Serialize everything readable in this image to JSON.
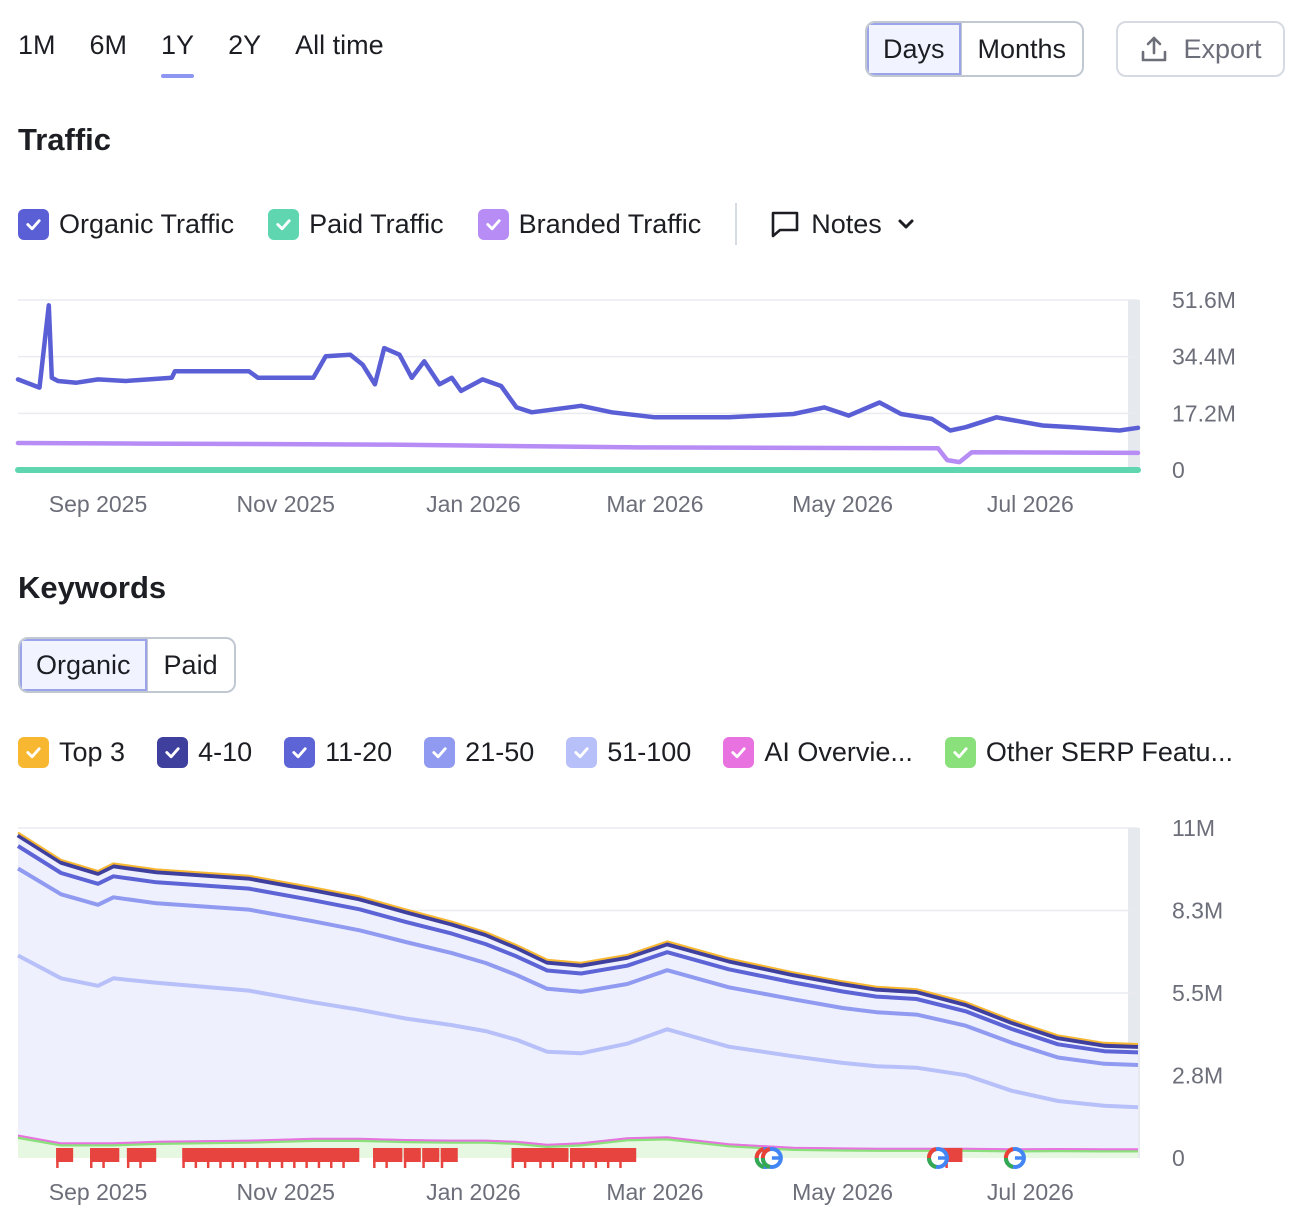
{
  "period_tabs": [
    {
      "label": "1M",
      "active": false
    },
    {
      "label": "6M",
      "active": false
    },
    {
      "label": "1Y",
      "active": true
    },
    {
      "label": "2Y",
      "active": false
    },
    {
      "label": "All time",
      "active": false
    }
  ],
  "granularity": {
    "days_label": "Days",
    "months_label": "Months",
    "selected": "Days"
  },
  "export": {
    "label": "Export",
    "icon": "upload-icon"
  },
  "traffic": {
    "title": "Traffic",
    "legend": [
      {
        "label": "Organic Traffic",
        "color": "#5b5fd6",
        "checked": true
      },
      {
        "label": "Paid Traffic",
        "color": "#5fd6b0",
        "checked": true
      },
      {
        "label": "Branded Traffic",
        "color": "#b78cf5",
        "checked": true
      }
    ],
    "notes_label": "Notes",
    "y_ticks": [
      "51.6M",
      "34.4M",
      "17.2M",
      "0"
    ],
    "x_ticks": [
      "Sep 2025",
      "Nov 2025",
      "Jan 2026",
      "Mar 2026",
      "May 2026",
      "Jul 2026"
    ]
  },
  "keywords": {
    "title": "Keywords",
    "tabs": {
      "organic_label": "Organic",
      "paid_label": "Paid",
      "selected": "Organic"
    },
    "legend": [
      {
        "label": "Top 3",
        "color": "#f7b731",
        "checked": true
      },
      {
        "label": "4-10",
        "color": "#3f3f9e",
        "checked": true
      },
      {
        "label": "11-20",
        "color": "#5d64d6",
        "checked": true
      },
      {
        "label": "21-50",
        "color": "#8f9af0",
        "checked": true
      },
      {
        "label": "51-100",
        "color": "#b7c0f8",
        "checked": true
      },
      {
        "label": "AI Overvie...",
        "color": "#e772e0",
        "checked": true
      },
      {
        "label": "Other SERP Featu...",
        "color": "#8ae07a",
        "checked": true
      }
    ],
    "y_ticks": [
      "11M",
      "8.3M",
      "5.5M",
      "2.8M",
      "0"
    ],
    "x_ticks": [
      "Sep 2025",
      "Nov 2025",
      "Jan 2026",
      "Mar 2026",
      "May 2026",
      "Jul 2026"
    ]
  },
  "chart_data": [
    {
      "type": "line",
      "title": "Traffic",
      "xlabel": "",
      "ylabel": "",
      "x_range": [
        "2025-08-06",
        "2026-08-05"
      ],
      "ylim": [
        0,
        51600000
      ],
      "grid": true,
      "legend": "top-left",
      "series": [
        {
          "name": "Organic Traffic",
          "color": "#5b5fd6",
          "x": [
            "2025-08-06",
            "2025-08-13",
            "2025-08-16",
            "2025-08-17",
            "2025-08-19",
            "2025-08-25",
            "2025-09-01",
            "2025-09-10",
            "2025-09-25",
            "2025-09-26",
            "2025-10-20",
            "2025-10-23",
            "2025-11-10",
            "2025-11-14",
            "2025-11-22",
            "2025-11-26",
            "2025-11-30",
            "2025-12-03",
            "2025-12-08",
            "2025-12-12",
            "2025-12-16",
            "2025-12-21",
            "2025-12-25",
            "2025-12-28",
            "2026-01-04",
            "2026-01-10",
            "2026-01-15",
            "2026-01-20",
            "2026-02-05",
            "2026-02-15",
            "2026-03-01",
            "2026-03-25",
            "2026-04-15",
            "2026-04-25",
            "2026-05-03",
            "2026-05-13",
            "2026-05-20",
            "2026-05-30",
            "2026-06-05",
            "2026-06-10",
            "2026-06-20",
            "2026-07-05",
            "2026-07-15",
            "2026-07-30",
            "2026-08-05"
          ],
          "values": [
            27500000,
            25000000,
            50000000,
            28000000,
            27000000,
            26500000,
            27500000,
            27000000,
            28000000,
            30000000,
            30000000,
            28000000,
            28000000,
            34500000,
            35000000,
            32000000,
            26000000,
            37000000,
            35000000,
            28000000,
            33000000,
            26000000,
            28000000,
            24000000,
            27500000,
            25500000,
            19000000,
            17500000,
            19500000,
            17500000,
            16000000,
            16000000,
            17000000,
            19000000,
            16500000,
            20500000,
            17000000,
            15500000,
            12000000,
            13000000,
            16000000,
            13500000,
            13000000,
            12000000,
            12800000
          ]
        },
        {
          "name": "Branded Traffic",
          "color": "#b78cf5",
          "x": [
            "2025-08-06",
            "2025-09-15",
            "2025-12-05",
            "2026-02-20",
            "2026-06-01",
            "2026-06-04",
            "2026-06-08",
            "2026-06-12",
            "2026-08-05"
          ],
          "values": [
            8200000,
            8000000,
            7700000,
            6900000,
            6600000,
            3000000,
            2400000,
            5400000,
            5200000
          ]
        },
        {
          "name": "Paid Traffic",
          "color": "#5fd6b0",
          "x": [
            "2025-08-06",
            "2026-08-05"
          ],
          "values": [
            0,
            0
          ]
        }
      ]
    },
    {
      "type": "area",
      "title": "Keywords",
      "xlabel": "",
      "ylabel": "",
      "x_range": [
        "2025-08-06",
        "2026-08-05"
      ],
      "ylim": [
        0,
        11000000
      ],
      "grid": true,
      "stacked": true,
      "legend": "top-left",
      "x": [
        "2025-08-06",
        "2025-08-20",
        "2025-09-01",
        "2025-09-06",
        "2025-09-20",
        "2025-10-20",
        "2025-11-10",
        "2025-11-25",
        "2025-12-10",
        "2025-12-25",
        "2026-01-05",
        "2026-01-15",
        "2026-01-25",
        "2026-02-05",
        "2026-02-20",
        "2026-03-05",
        "2026-03-25",
        "2026-04-15",
        "2026-05-01",
        "2026-05-12",
        "2026-05-25",
        "2026-06-10",
        "2026-06-25",
        "2026-07-10",
        "2026-07-25",
        "2026-08-05"
      ],
      "series": [
        {
          "name": "Other SERP Featu...",
          "color": "#8ae07a",
          "values": [
            700000,
            450000,
            450000,
            450000,
            500000,
            540000,
            600000,
            600000,
            560000,
            540000,
            540000,
            500000,
            400000,
            450000,
            620000,
            650000,
            420000,
            300000,
            280000,
            270000,
            270000,
            270000,
            250000,
            260000,
            250000,
            250000
          ]
        },
        {
          "name": "AI Overvie...",
          "color": "#e772e0",
          "values": [
            50000,
            40000,
            40000,
            40000,
            40000,
            40000,
            40000,
            40000,
            40000,
            40000,
            40000,
            40000,
            40000,
            40000,
            40000,
            40000,
            40000,
            40000,
            40000,
            40000,
            40000,
            40000,
            40000,
            40000,
            40000,
            40000
          ]
        },
        {
          "name": "51-100",
          "color": "#b7c0f8",
          "values": [
            6000000,
            5500000,
            5250000,
            5500000,
            5300000,
            5000000,
            4550000,
            4300000,
            4050000,
            3850000,
            3650000,
            3400000,
            3100000,
            3000000,
            3150000,
            3600000,
            3250000,
            3050000,
            2850000,
            2750000,
            2700000,
            2450000,
            1950000,
            1600000,
            1450000,
            1400000
          ]
        },
        {
          "name": "21-50",
          "color": "#8f9af0",
          "values": [
            2900000,
            2800000,
            2700000,
            2700000,
            2650000,
            2700000,
            2700000,
            2650000,
            2550000,
            2400000,
            2270000,
            2160000,
            2100000,
            2050000,
            1990000,
            1970000,
            1980000,
            1900000,
            1830000,
            1800000,
            1770000,
            1650000,
            1600000,
            1450000,
            1400000,
            1410000
          ]
        },
        {
          "name": "11-20",
          "color": "#5d64d6",
          "values": [
            750000,
            710000,
            700000,
            700000,
            700000,
            700000,
            700000,
            700000,
            670000,
            650000,
            630000,
            620000,
            610000,
            610000,
            610000,
            600000,
            600000,
            560000,
            550000,
            520000,
            520000,
            480000,
            460000,
            440000,
            420000,
            420000
          ]
        },
        {
          "name": "4-10",
          "color": "#3f3f9e",
          "values": [
            370000,
            360000,
            350000,
            350000,
            350000,
            350000,
            350000,
            350000,
            340000,
            320000,
            320000,
            300000,
            280000,
            280000,
            280000,
            280000,
            280000,
            260000,
            260000,
            250000,
            250000,
            230000,
            220000,
            220000,
            200000,
            200000
          ]
        },
        {
          "name": "Top 3",
          "color": "#f7b731",
          "values": [
            80000,
            80000,
            80000,
            80000,
            80000,
            80000,
            80000,
            80000,
            80000,
            80000,
            80000,
            80000,
            80000,
            80000,
            80000,
            80000,
            80000,
            80000,
            80000,
            80000,
            80000,
            80000,
            80000,
            80000,
            80000,
            80000
          ]
        }
      ],
      "annotations": {
        "flags": [
          "2025-08-21",
          "2025-09-01",
          "2025-09-05",
          "2025-09-13",
          "2025-09-17",
          "2025-10-01",
          "2025-10-05",
          "2025-10-09",
          "2025-10-13",
          "2025-10-17",
          "2025-10-21",
          "2025-10-25",
          "2025-10-29",
          "2025-11-02",
          "2025-11-06",
          "2025-11-10",
          "2025-11-14",
          "2025-11-18",
          "2025-11-22",
          "2025-12-02",
          "2025-12-06",
          "2025-12-12",
          "2025-12-18",
          "2025-12-24",
          "2026-01-16",
          "2026-01-20",
          "2026-01-25",
          "2026-01-29",
          "2026-02-04",
          "2026-02-08",
          "2026-02-12",
          "2026-02-16",
          "2026-02-20",
          "2026-06-02",
          "2026-06-06"
        ],
        "google_updates": [
          "2026-04-06",
          "2026-04-08",
          "2026-06-01",
          "2026-06-26"
        ]
      }
    }
  ]
}
